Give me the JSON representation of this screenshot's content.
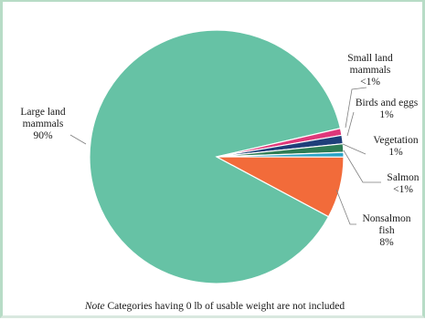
{
  "chart_data": {
    "type": "pie",
    "start_angle": "clockwise from the largest slice",
    "slices": [
      {
        "id": "large-land-mammals",
        "label_lines": [
          "Large land",
          "mammals",
          "90%"
        ],
        "value": 89.8,
        "color": "#66c2a5"
      },
      {
        "id": "small-land-mammals",
        "label_lines": [
          "Small land",
          "mammals",
          "<1%"
        ],
        "value": 0.9,
        "color": "#e0387a"
      },
      {
        "id": "birds-and-eggs",
        "label_lines": [
          "Birds and eggs",
          "1%"
        ],
        "value": 1.1,
        "color": "#1f3f7a"
      },
      {
        "id": "vegetation",
        "label_lines": [
          "Vegetation",
          "1%"
        ],
        "value": 1.1,
        "color": "#2e7d55"
      },
      {
        "id": "salmon",
        "label_lines": [
          "Salmon",
          "<1%"
        ],
        "value": 0.6,
        "color": "#2aa3c6"
      },
      {
        "id": "nonsalmon-fish",
        "label_lines": [
          "Nonsalmon",
          "fish",
          "8%"
        ],
        "value": 7.9,
        "color": "#f26b3a"
      }
    ]
  },
  "note": {
    "prefix": "Note",
    "text": " Categories having 0 lb of usable weight are not included"
  }
}
